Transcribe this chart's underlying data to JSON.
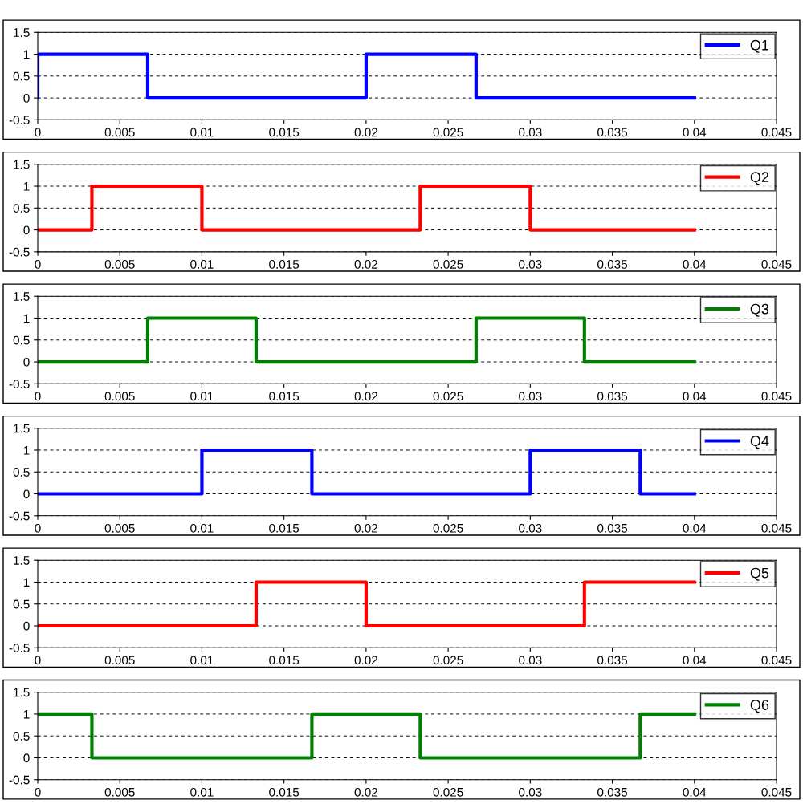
{
  "chart_data": [
    {
      "type": "line",
      "series": [
        {
          "name": "Q1",
          "color": "#0000ff",
          "x": [
            0,
            0,
            0.0067,
            0.0067,
            0.02,
            0.02,
            0.0267,
            0.0267,
            0.04
          ],
          "values": [
            0,
            1,
            1,
            0,
            0,
            1,
            1,
            0,
            0
          ]
        }
      ],
      "xlim": [
        0,
        0.045
      ],
      "xticks": [
        0,
        0.005,
        0.01,
        0.015,
        0.02,
        0.025,
        0.03,
        0.035,
        0.04,
        0.045
      ],
      "ylim": [
        -0.5,
        1.5
      ],
      "yticks": [
        -0.5,
        0,
        0.5,
        1,
        1.5
      ],
      "grid": "y",
      "legend": "top right"
    },
    {
      "type": "line",
      "series": [
        {
          "name": "Q2",
          "color": "#ff0000",
          "x": [
            0,
            0.0033,
            0.0033,
            0.01,
            0.01,
            0.0233,
            0.0233,
            0.03,
            0.03,
            0.04
          ],
          "values": [
            0,
            0,
            1,
            1,
            0,
            0,
            1,
            1,
            0,
            0
          ]
        }
      ],
      "xlim": [
        0,
        0.045
      ],
      "xticks": [
        0,
        0.005,
        0.01,
        0.015,
        0.02,
        0.025,
        0.03,
        0.035,
        0.04,
        0.045
      ],
      "ylim": [
        -0.5,
        1.5
      ],
      "yticks": [
        -0.5,
        0,
        0.5,
        1,
        1.5
      ],
      "grid": "y",
      "legend": "top right"
    },
    {
      "type": "line",
      "series": [
        {
          "name": "Q3",
          "color": "#008000",
          "x": [
            0,
            0.0067,
            0.0067,
            0.0133,
            0.0133,
            0.0267,
            0.0267,
            0.0333,
            0.0333,
            0.04
          ],
          "values": [
            0,
            0,
            1,
            1,
            0,
            0,
            1,
            1,
            0,
            0
          ]
        }
      ],
      "xlim": [
        0,
        0.045
      ],
      "xticks": [
        0,
        0.005,
        0.01,
        0.015,
        0.02,
        0.025,
        0.03,
        0.035,
        0.04,
        0.045
      ],
      "ylim": [
        -0.5,
        1.5
      ],
      "yticks": [
        -0.5,
        0,
        0.5,
        1,
        1.5
      ],
      "grid": "y",
      "legend": "top right"
    },
    {
      "type": "line",
      "series": [
        {
          "name": "Q4",
          "color": "#0000ff",
          "x": [
            0,
            0.01,
            0.01,
            0.0167,
            0.0167,
            0.03,
            0.03,
            0.0367,
            0.0367,
            0.04
          ],
          "values": [
            0,
            0,
            1,
            1,
            0,
            0,
            1,
            1,
            0,
            0
          ]
        }
      ],
      "xlim": [
        0,
        0.045
      ],
      "xticks": [
        0,
        0.005,
        0.01,
        0.015,
        0.02,
        0.025,
        0.03,
        0.035,
        0.04,
        0.045
      ],
      "ylim": [
        -0.5,
        1.5
      ],
      "yticks": [
        -0.5,
        0,
        0.5,
        1,
        1.5
      ],
      "grid": "y",
      "legend": "top right"
    },
    {
      "type": "line",
      "series": [
        {
          "name": "Q5",
          "color": "#ff0000",
          "x": [
            0,
            0.0133,
            0.0133,
            0.02,
            0.02,
            0.0333,
            0.0333,
            0.04
          ],
          "values": [
            0,
            0,
            1,
            1,
            0,
            0,
            1,
            1
          ]
        }
      ],
      "xlim": [
        0,
        0.045
      ],
      "xticks": [
        0,
        0.005,
        0.01,
        0.015,
        0.02,
        0.025,
        0.03,
        0.035,
        0.04,
        0.045
      ],
      "ylim": [
        -0.5,
        1.5
      ],
      "yticks": [
        -0.5,
        0,
        0.5,
        1,
        1.5
      ],
      "grid": "y",
      "legend": "top right"
    },
    {
      "type": "line",
      "series": [
        {
          "name": "Q6",
          "color": "#008000",
          "x": [
            0,
            0.0033,
            0.0033,
            0.0167,
            0.0167,
            0.0233,
            0.0233,
            0.0367,
            0.0367,
            0.04
          ],
          "values": [
            1,
            1,
            0,
            0,
            1,
            1,
            0,
            0,
            1,
            1
          ]
        }
      ],
      "xlim": [
        0,
        0.045
      ],
      "xticks": [
        0,
        0.005,
        0.01,
        0.015,
        0.02,
        0.025,
        0.03,
        0.035,
        0.04,
        0.045
      ],
      "ylim": [
        -0.5,
        1.5
      ],
      "yticks": [
        -0.5,
        0,
        0.5,
        1,
        1.5
      ],
      "grid": "y",
      "legend": "top right"
    }
  ]
}
